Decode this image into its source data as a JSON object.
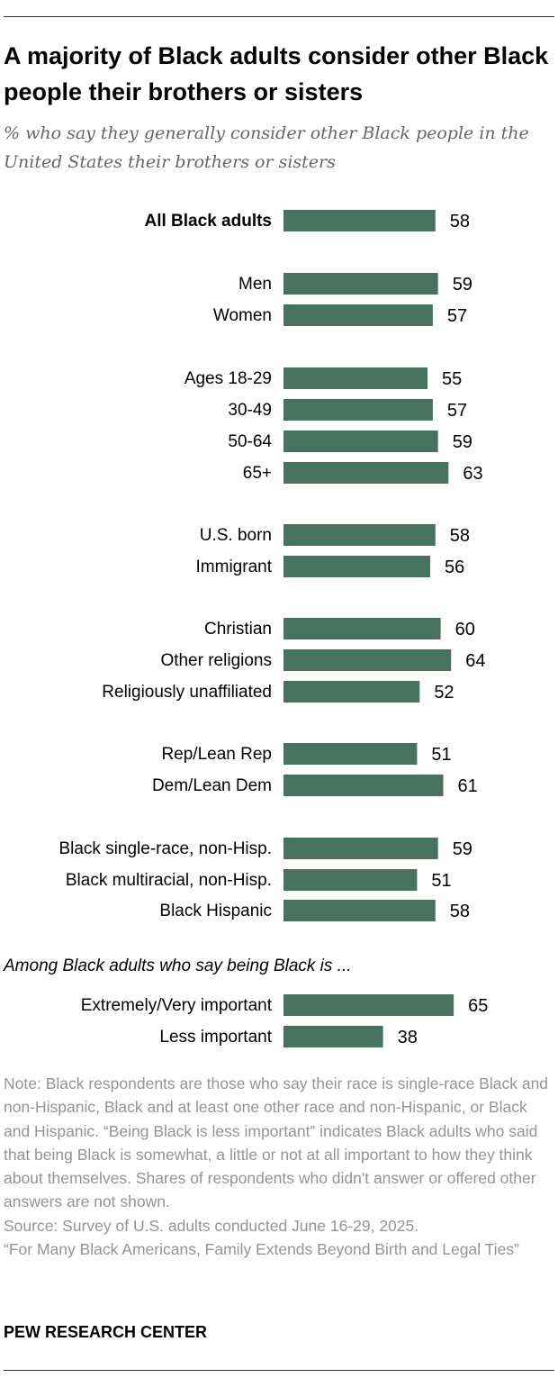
{
  "title": "A majority of Black adults consider other Black people their brothers or sisters",
  "subtitle": "% who say they generally consider other Black people in the United States their brothers or sisters",
  "chart_data": {
    "type": "bar",
    "orientation": "horizontal",
    "bar_color": "#47725f",
    "categories": [
      "All Black adults",
      "Men",
      "Women",
      "Ages 18-29",
      "30-49",
      "50-64",
      "65+",
      "U.S. born",
      "Immigrant",
      "Christian",
      "Other religions",
      "Religiously unaffiliated",
      "Rep/Lean Rep",
      "Dem/Lean Dem",
      "Black single-race, non-Hisp.",
      "Black multiracial, non-Hisp.",
      "Black Hispanic",
      "Extremely/Very important",
      "Less important"
    ],
    "values": [
      58,
      59,
      57,
      55,
      57,
      59,
      63,
      58,
      56,
      60,
      64,
      52,
      51,
      61,
      59,
      51,
      58,
      65,
      38
    ],
    "section_heading": "Among Black adults who say being Black is ...",
    "bold_categories": [
      "All Black adults"
    ]
  },
  "note": "Note: Black respondents are those who say their race is single-race Black and non-Hispanic, Black and at least one other race and non-Hispanic, or Black and Hispanic. “Being Black is less important” indicates Black adults who said that being Black is somewhat, a little or not at all important to how they think about themselves. Shares of respondents who didn't answer or offered other answers are not shown.",
  "source": "Source: Survey of U.S. adults conducted June 16-29, 2025.",
  "report": "“For Many Black Americans, Family Extends Beyond Birth and Legal Ties”",
  "brand": "PEW RESEARCH CENTER"
}
